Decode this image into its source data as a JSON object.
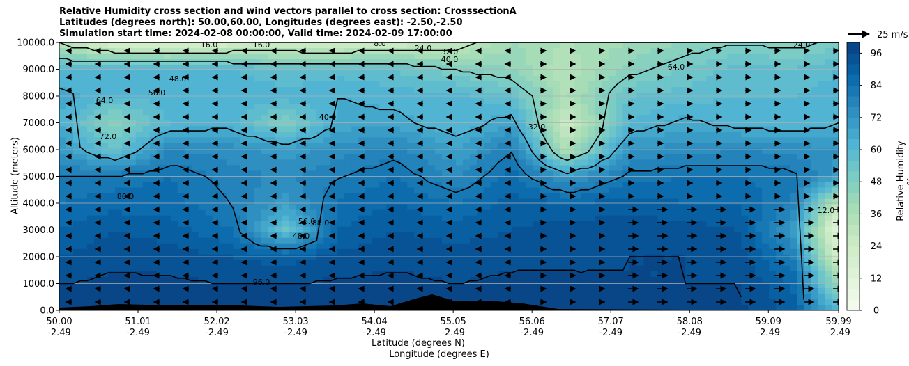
{
  "chart_data": {
    "type": "heatmap",
    "title_lines": [
      "Relative Humidity cross section and wind vectors parallel to cross section: CrosssectionA",
      "Latitudes (degrees north): 50.00,60.00, Longitudes (degrees east): -2.50,-2.50",
      "Simulation start time: 2024-02-08 00:00:00, Valid time: 2024-02-09 17:00:00"
    ],
    "xlabel_line1": "Latitude (degrees N)",
    "xlabel_line2": "Longitude (degrees E)",
    "ylabel": "Altitude (meters)",
    "colorbar_label": "Relative Humidity %",
    "quiver_key_label": "25 m/s",
    "x_ticks": [
      {
        "lat": "50.00",
        "lon": "-2.49"
      },
      {
        "lat": "51.01",
        "lon": "-2.49"
      },
      {
        "lat": "52.02",
        "lon": "-2.49"
      },
      {
        "lat": "53.03",
        "lon": "-2.49"
      },
      {
        "lat": "54.04",
        "lon": "-2.49"
      },
      {
        "lat": "55.05",
        "lon": "-2.49"
      },
      {
        "lat": "56.06",
        "lon": "-2.49"
      },
      {
        "lat": "57.07",
        "lon": "-2.49"
      },
      {
        "lat": "58.08",
        "lon": "-2.49"
      },
      {
        "lat": "59.09",
        "lon": "-2.49"
      },
      {
        "lat": "59.99",
        "lon": "-2.49"
      }
    ],
    "x_range": [
      50.0,
      59.99
    ],
    "y_ticks": [
      "0.0",
      "1000.0",
      "2000.0",
      "3000.0",
      "4000.0",
      "5000.0",
      "6000.0",
      "7000.0",
      "8000.0",
      "9000.0",
      "10000.0"
    ],
    "y_range": [
      0,
      10000
    ],
    "colorbar_ticks": [
      "0",
      "12",
      "24",
      "36",
      "48",
      "60",
      "72",
      "84",
      "96"
    ],
    "colorbar_range": [
      0,
      100
    ],
    "colormap": [
      "#f7fcf0",
      "#e0f3db",
      "#ccebc5",
      "#a8ddb5",
      "#7bccc4",
      "#4eb3d3",
      "#2b8cbe",
      "#0868ac",
      "#084081"
    ],
    "grid": "horizontal",
    "columns_lat": [
      50.0,
      50.7,
      51.4,
      52.2,
      52.9,
      53.6,
      54.3,
      55.1,
      55.8,
      56.5,
      57.3,
      58.0,
      58.7,
      59.4,
      59.99
    ],
    "rows_alt": [
      0,
      1000,
      2000,
      3000,
      4000,
      5000,
      6000,
      7000,
      8000,
      9000,
      10000
    ],
    "humidity_rows": [
      [
        98,
        98,
        98,
        97,
        98,
        98,
        98,
        96,
        98,
        98,
        98,
        96,
        97,
        90,
        60
      ],
      [
        96,
        97,
        97,
        96,
        96,
        97,
        97,
        96,
        97,
        97,
        96,
        96,
        96,
        88,
        40
      ],
      [
        92,
        95,
        94,
        92,
        90,
        93,
        95,
        94,
        95,
        95,
        96,
        96,
        95,
        80,
        20
      ],
      [
        88,
        92,
        90,
        84,
        55,
        88,
        92,
        90,
        92,
        94,
        95,
        94,
        92,
        70,
        10
      ],
      [
        84,
        86,
        86,
        80,
        70,
        85,
        88,
        84,
        90,
        88,
        90,
        88,
        88,
        80,
        30
      ],
      [
        80,
        82,
        84,
        78,
        75,
        80,
        84,
        75,
        86,
        70,
        82,
        84,
        84,
        82,
        70
      ],
      [
        72,
        55,
        76,
        74,
        70,
        74,
        78,
        68,
        80,
        35,
        72,
        74,
        76,
        75,
        72
      ],
      [
        64,
        45,
        60,
        62,
        48,
        66,
        66,
        60,
        68,
        25,
        60,
        66,
        62,
        60,
        64
      ],
      [
        66,
        60,
        62,
        64,
        62,
        64,
        62,
        62,
        56,
        35,
        56,
        58,
        60,
        60,
        62
      ],
      [
        60,
        62,
        62,
        60,
        56,
        58,
        56,
        48,
        44,
        32,
        46,
        52,
        58,
        56,
        60
      ],
      [
        32,
        18,
        16,
        20,
        22,
        20,
        24,
        28,
        40,
        36,
        40,
        44,
        48,
        46,
        50
      ]
    ],
    "contour_labels": [
      "16.0",
      "16.0",
      "8.0",
      "24.0",
      "32.0",
      "40.0",
      "48.0",
      "56.0",
      "64.0",
      "72.0",
      "80.0",
      "88.0",
      "96.0",
      "48.0",
      "56.0",
      "64.0",
      "40.0",
      "32.0",
      "24.0",
      "12.0"
    ]
  }
}
